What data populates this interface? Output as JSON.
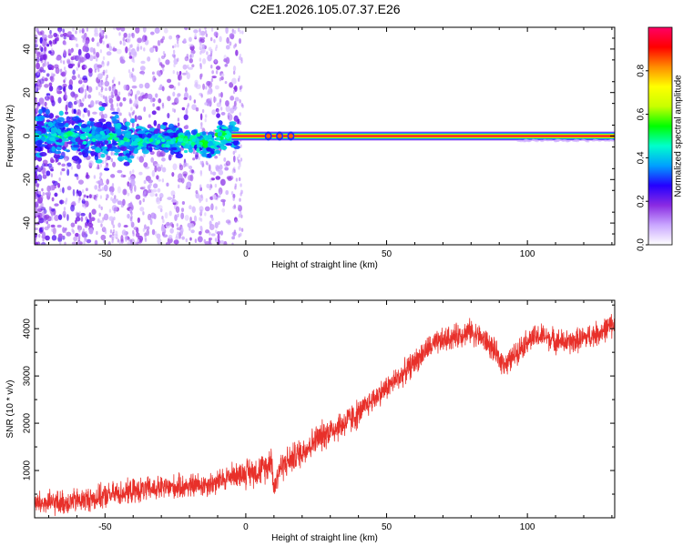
{
  "title": "C2E1.2026.105.07.37.E26",
  "chart_data": [
    {
      "type": "heatmap",
      "title": "C2E1.2026.105.07.37.E26",
      "xlabel": "Height of straight line (km)",
      "ylabel": "Frequency (Hz)",
      "xlim": [
        -75,
        131
      ],
      "ylim": [
        -50,
        50
      ],
      "xticks": [
        -50,
        0,
        50,
        100
      ],
      "xtick_labels": [
        "-50",
        "0",
        "50",
        "100"
      ],
      "yticks": [
        -40,
        -20,
        0,
        20,
        40
      ],
      "ytick_labels": [
        "-40",
        "-20",
        "0",
        "20",
        "40"
      ],
      "colorbar": {
        "label": "Normalized spectral amplitude",
        "range": [
          0,
          1
        ],
        "ticks": [
          0.0,
          0.2,
          0.4,
          0.6,
          0.8
        ],
        "tick_labels": [
          "0.0",
          "0.2",
          "0.4",
          "0.6",
          "0.8"
        ],
        "colors": [
          "#ffffff",
          "#c9a6ff",
          "#8a2be2",
          "#2400ff",
          "#00a0ff",
          "#00ffcc",
          "#00ff00",
          "#c8ff00",
          "#ffff00",
          "#ff8c00",
          "#ff0000",
          "#ff0066"
        ]
      },
      "signal": {
        "strong_band": {
          "x_start": -5,
          "x_end": 131,
          "frequency": 0
        },
        "scattered_noise": {
          "x_start": -75,
          "x_end": -10
        }
      }
    },
    {
      "type": "line",
      "xlabel": "Height of straight line (km)",
      "ylabel": "SNR (10 * v/v)",
      "xlim": [
        -75,
        131
      ],
      "ylim": [
        0,
        4600
      ],
      "xticks": [
        -50,
        0,
        50,
        100
      ],
      "xtick_labels": [
        "-50",
        "0",
        "50",
        "100"
      ],
      "yticks": [
        1000,
        2000,
        3000,
        4000
      ],
      "ytick_labels": [
        "1000",
        "2000",
        "3000",
        "4000"
      ],
      "color": "#e8302a",
      "series": [
        {
          "name": "SNR",
          "x": [
            -75,
            -65,
            -55,
            -45,
            -35,
            -25,
            -15,
            -10,
            -5,
            0,
            5,
            8,
            9,
            10,
            12,
            15,
            20,
            25,
            30,
            35,
            40,
            45,
            50,
            55,
            60,
            65,
            70,
            75,
            80,
            85,
            88,
            90,
            93,
            96,
            100,
            105,
            110,
            115,
            120,
            125,
            131
          ],
          "y": [
            300,
            320,
            400,
            520,
            600,
            650,
            700,
            750,
            900,
            950,
            1000,
            1100,
            1350,
            600,
            1050,
            1200,
            1400,
            1650,
            1850,
            2000,
            2200,
            2500,
            2750,
            3000,
            3300,
            3600,
            3750,
            3850,
            3950,
            3750,
            3550,
            3350,
            3250,
            3500,
            3750,
            3850,
            3750,
            3700,
            3800,
            3900,
            4100
          ]
        }
      ]
    }
  ]
}
